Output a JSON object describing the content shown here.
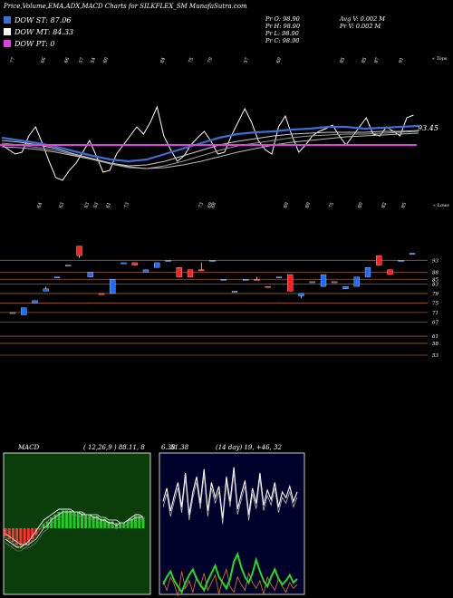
{
  "header": {
    "title": "Price,Volume,EMA,ADX,MACD Charts for SILKFLEX_SM MunafaSutra.com"
  },
  "legend": [
    {
      "label": "DOW ST: 87.06",
      "color": "#3b6fd6"
    },
    {
      "label": "DOW MT: 84.33",
      "color": "#ffffff"
    },
    {
      "label": "DOW PT: 0",
      "color": "#e040e0"
    }
  ],
  "ohlc": {
    "open": "Pr O: 98.90",
    "high": "Pr H: 98.90",
    "low": "Pr L: 98.90",
    "close": "Pr C: 98.90",
    "avg_vol": "Avg V: 0.002 M",
    "vol": "Pr V: 0.002 M"
  },
  "top_panel": {
    "label_right": "« Tops",
    "last_value": "93.45",
    "top_labels": [
      "77",
      "66",
      "66",
      "57",
      "54",
      "60",
      "84",
      "75",
      "70",
      "57",
      "60",
      "85",
      "85",
      "87",
      "91"
    ],
    "bottom_labels": [
      "64",
      "63",
      "53",
      "53",
      "61",
      "73",
      "73",
      "69",
      "68",
      "80",
      "80",
      "75",
      "80",
      "82",
      "85"
    ],
    "bottom_right": "« Lows"
  },
  "chart_data": [
    {
      "type": "candlestick",
      "title": "",
      "y_ticks": [
        93,
        88,
        85,
        83,
        79,
        75,
        71,
        67,
        61,
        58,
        53
      ],
      "candles": [
        {
          "o": 71,
          "c": 71,
          "h": 71,
          "l": 71,
          "dir": "up"
        },
        {
          "o": 70,
          "c": 73,
          "h": 73,
          "l": 70,
          "dir": "up"
        },
        {
          "o": 75,
          "c": 76,
          "h": 76,
          "l": 75,
          "dir": "up"
        },
        {
          "o": 80,
          "c": 81,
          "h": 82,
          "l": 80,
          "dir": "up"
        },
        {
          "o": 86,
          "c": 86,
          "h": 86,
          "l": 86,
          "dir": "up"
        },
        {
          "o": 91,
          "c": 91,
          "h": 91,
          "l": 91,
          "dir": "up"
        },
        {
          "o": 99,
          "c": 95,
          "h": 99,
          "l": 94,
          "dir": "down"
        },
        {
          "o": 86,
          "c": 88,
          "h": 88,
          "l": 86,
          "dir": "up"
        },
        {
          "o": 79,
          "c": 79,
          "h": 79,
          "l": 79,
          "dir": "down"
        },
        {
          "o": 79,
          "c": 85,
          "h": 85,
          "l": 79,
          "dir": "up"
        },
        {
          "o": 92,
          "c": 92,
          "h": 92,
          "l": 92,
          "dir": "up"
        },
        {
          "o": 92,
          "c": 91,
          "h": 92,
          "l": 91,
          "dir": "down"
        },
        {
          "o": 88,
          "c": 89,
          "h": 89,
          "l": 88,
          "dir": "up"
        },
        {
          "o": 90,
          "c": 92,
          "h": 92,
          "l": 90,
          "dir": "up"
        },
        {
          "o": 93,
          "c": 93,
          "h": 93,
          "l": 93,
          "dir": "up"
        },
        {
          "o": 90,
          "c": 86,
          "h": 90,
          "l": 86,
          "dir": "down"
        },
        {
          "o": 89,
          "c": 86,
          "h": 89,
          "l": 86,
          "dir": "down"
        },
        {
          "o": 89,
          "c": 89,
          "h": 92,
          "l": 89,
          "dir": "down"
        },
        {
          "o": 93,
          "c": 93,
          "h": 93,
          "l": 93,
          "dir": "up"
        },
        {
          "o": 85,
          "c": 85,
          "h": 85,
          "l": 85,
          "dir": "up"
        },
        {
          "o": 80,
          "c": 80,
          "h": 80,
          "l": 80,
          "dir": "up"
        },
        {
          "o": 85,
          "c": 85,
          "h": 85,
          "l": 85,
          "dir": "up"
        },
        {
          "o": 85,
          "c": 85,
          "h": 86,
          "l": 85,
          "dir": "down"
        },
        {
          "o": 82,
          "c": 82,
          "h": 82,
          "l": 82,
          "dir": "down"
        },
        {
          "o": 86,
          "c": 86,
          "h": 86,
          "l": 86,
          "dir": "up"
        },
        {
          "o": 87,
          "c": 80,
          "h": 87,
          "l": 80,
          "dir": "down"
        },
        {
          "o": 78,
          "c": 79,
          "h": 79,
          "l": 77,
          "dir": "up"
        },
        {
          "o": 84,
          "c": 84,
          "h": 84,
          "l": 84,
          "dir": "up"
        },
        {
          "o": 82,
          "c": 87,
          "h": 87,
          "l": 82,
          "dir": "up"
        },
        {
          "o": 84,
          "c": 84,
          "h": 84,
          "l": 84,
          "dir": "down"
        },
        {
          "o": 81,
          "c": 82,
          "h": 82,
          "l": 81,
          "dir": "up"
        },
        {
          "o": 82,
          "c": 86,
          "h": 86,
          "l": 82,
          "dir": "up"
        },
        {
          "o": 86,
          "c": 90,
          "h": 90,
          "l": 86,
          "dir": "up"
        },
        {
          "o": 95,
          "c": 91,
          "h": 95,
          "l": 91,
          "dir": "down"
        },
        {
          "o": 89,
          "c": 87,
          "h": 89,
          "l": 87,
          "dir": "down"
        },
        {
          "o": 93,
          "c": 93,
          "h": 93,
          "l": 93,
          "dir": "up"
        },
        {
          "o": 96,
          "c": 96,
          "h": 96,
          "l": 96,
          "dir": "up"
        }
      ]
    },
    {
      "type": "line",
      "title": "MACD",
      "params": "( 12,26,9 ) 88.11, 8",
      "value_right": "6.38",
      "series": [
        {
          "name": "MACD",
          "values": [
            -4,
            -5,
            -6,
            -7,
            -7,
            -6,
            -5,
            -3,
            -1,
            1,
            3,
            4,
            5,
            6,
            7,
            7,
            7,
            7,
            6,
            6,
            5,
            5,
            5,
            4,
            4,
            3,
            3,
            2,
            2,
            1,
            2,
            2,
            3,
            4,
            5,
            5,
            4
          ]
        },
        {
          "name": "Signal",
          "values": [
            -2,
            -3,
            -4,
            -5,
            -6,
            -6,
            -6,
            -5,
            -4,
            -2,
            0,
            1,
            3,
            4,
            5,
            6,
            6,
            6,
            6,
            6,
            6,
            5,
            5,
            5,
            5,
            4,
            4,
            3,
            3,
            3,
            2,
            2,
            3,
            3,
            4,
            4,
            4
          ]
        }
      ]
    },
    {
      "type": "line",
      "title": "ADX",
      "params": "(14 day) 19, +46, 32",
      "value_left": "51.38",
      "series": [
        {
          "name": "+DI",
          "values": [
            45,
            52,
            40,
            48,
            55,
            42,
            60,
            38,
            50,
            58,
            44,
            62,
            40,
            55,
            47,
            53,
            36,
            58,
            45,
            63,
            41,
            49,
            56,
            38,
            52,
            44,
            60,
            43,
            51,
            46,
            55,
            42,
            50,
            47,
            53,
            45,
            50
          ]
        },
        {
          "name": "-DI",
          "values": [
            20,
            15,
            22,
            18,
            12,
            25,
            16,
            20,
            14,
            22,
            17,
            24,
            15,
            19,
            23,
            13,
            21,
            26,
            17,
            14,
            22,
            18,
            15,
            24,
            19,
            16,
            20,
            13,
            22,
            18,
            15,
            21,
            17,
            14,
            19,
            16,
            18
          ]
        },
        {
          "name": "ADX",
          "values": [
            18,
            22,
            25,
            20,
            17,
            14,
            19,
            23,
            26,
            21,
            18,
            15,
            20,
            24,
            28,
            22,
            19,
            16,
            21,
            30,
            34,
            27,
            22,
            19,
            24,
            31,
            25,
            20,
            17,
            22,
            26,
            21,
            18,
            20,
            23,
            19,
            21
          ]
        }
      ]
    }
  ],
  "colors": {
    "up": "#1e6bff",
    "down": "#ff2020",
    "macd_bg": "#0b3d0b",
    "adx_bg": "#00002a",
    "grid": "#a05a2a",
    "pt_line": "#e040e0"
  }
}
